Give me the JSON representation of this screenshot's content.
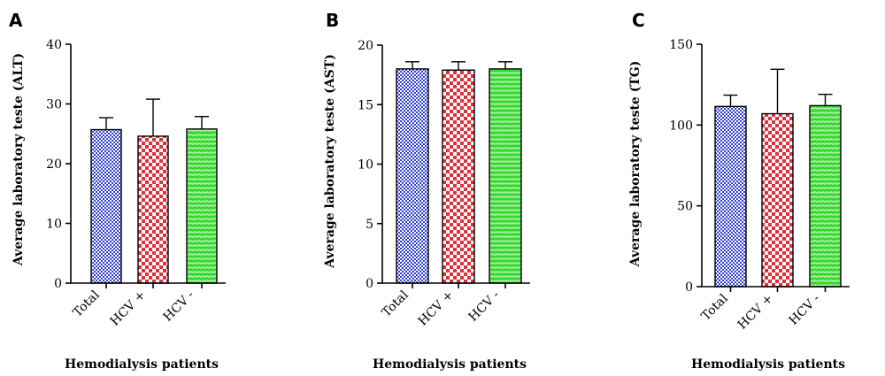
{
  "colors": {
    "total": "#2f3fd0",
    "hcv_pos": "#e0303a",
    "hcv_neg": "#34d82c",
    "axis": "#000000"
  },
  "chart_data": [
    {
      "type": "bar",
      "panel": "A",
      "categories": [
        "Total",
        "HCV +",
        "HCV -"
      ],
      "values": [
        25.7,
        24.6,
        25.8
      ],
      "error_upper": [
        27.7,
        30.8,
        27.9
      ],
      "ylabel": "Average laboratory teste (ALT)",
      "xlabel": "Hemodialysis patients",
      "ylim": [
        0,
        40
      ],
      "yticks": [
        0,
        10,
        20,
        30,
        40
      ]
    },
    {
      "type": "bar",
      "panel": "B",
      "categories": [
        "Total",
        "HCV +",
        "HCV -"
      ],
      "values": [
        18.0,
        17.9,
        18.0
      ],
      "error_upper": [
        18.6,
        18.6,
        18.6
      ],
      "ylabel": "Average laboratory teste (AST)",
      "xlabel": "Hemodialysis patients",
      "ylim": [
        0,
        20
      ],
      "yticks": [
        0,
        5,
        10,
        15,
        20
      ]
    },
    {
      "type": "bar",
      "panel": "C",
      "categories": [
        "Total",
        "HCV +",
        "HCV -"
      ],
      "values": [
        111.5,
        107,
        112
      ],
      "error_upper": [
        118.5,
        134.5,
        119
      ],
      "ylabel": "Average laboratory teste (TG)",
      "xlabel": "Hemodialysis patients",
      "ylim": [
        0,
        150
      ],
      "yticks": [
        0,
        50,
        100,
        150
      ]
    }
  ]
}
